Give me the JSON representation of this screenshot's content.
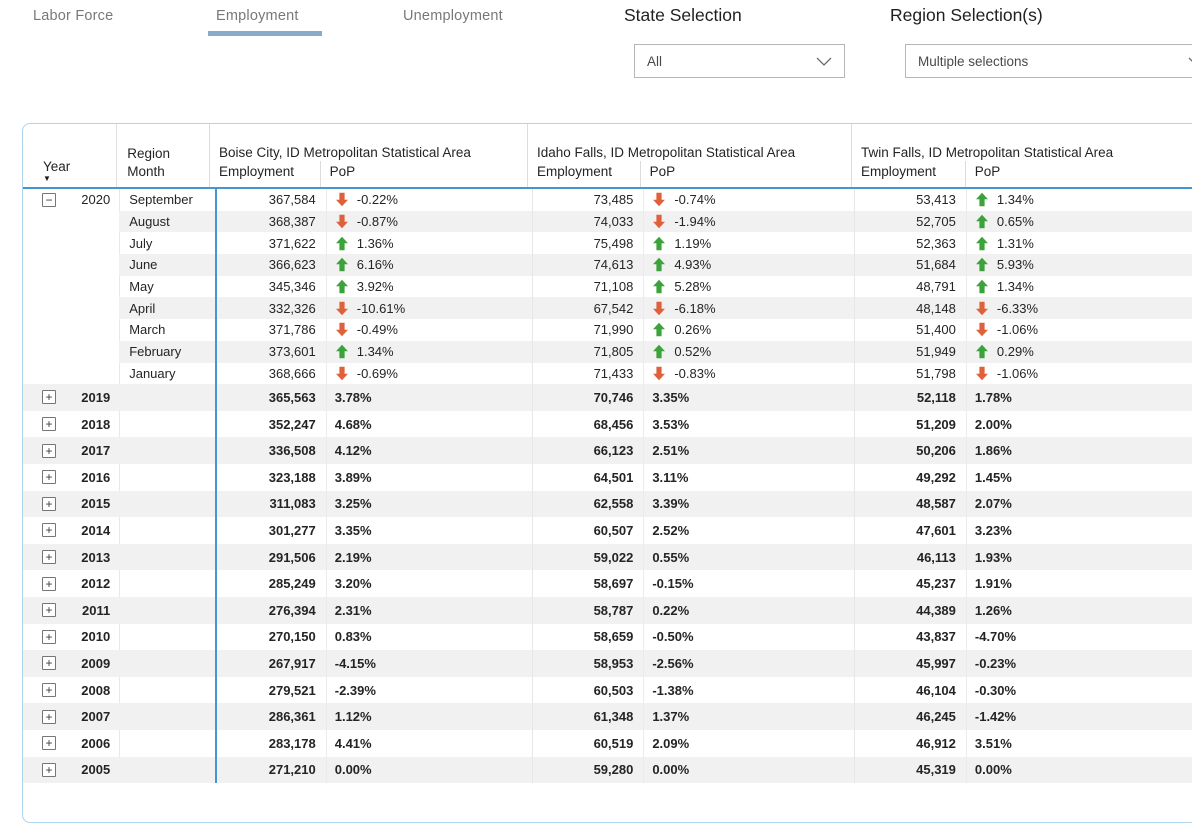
{
  "tabs": {
    "items": [
      {
        "label": "Labor Force",
        "active": false
      },
      {
        "label": "Employment",
        "active": true
      },
      {
        "label": "Unemployment",
        "active": false
      }
    ]
  },
  "filters": {
    "state_label": "State Selection",
    "state_value": "All",
    "region_label": "Region Selection(s)",
    "region_value": "Multiple selections"
  },
  "matrix": {
    "year_header": "Year",
    "region_header": "Region",
    "month_header": "Month",
    "area_groups": [
      {
        "title": "Boise City, ID Metropolitan Statistical Area",
        "sub": [
          "Employment",
          "PoP"
        ]
      },
      {
        "title": "Idaho Falls, ID Metropolitan Statistical Area",
        "sub": [
          "Employment",
          "PoP"
        ]
      },
      {
        "title": "Twin Falls, ID Metropolitan Statistical Area",
        "sub": [
          "Employment",
          "PoP"
        ]
      }
    ],
    "expanded_year": "2020",
    "months": [
      {
        "month": "September",
        "boise": [
          "367,584",
          "down",
          "-0.22%"
        ],
        "idaho": [
          "73,485",
          "down",
          "-0.74%"
        ],
        "twin": [
          "53,413",
          "up",
          "1.34%"
        ]
      },
      {
        "month": "August",
        "boise": [
          "368,387",
          "down",
          "-0.87%"
        ],
        "idaho": [
          "74,033",
          "down",
          "-1.94%"
        ],
        "twin": [
          "52,705",
          "up",
          "0.65%"
        ]
      },
      {
        "month": "July",
        "boise": [
          "371,622",
          "up",
          "1.36%"
        ],
        "idaho": [
          "75,498",
          "up",
          "1.19%"
        ],
        "twin": [
          "52,363",
          "up",
          "1.31%"
        ]
      },
      {
        "month": "June",
        "boise": [
          "366,623",
          "up",
          "6.16%"
        ],
        "idaho": [
          "74,613",
          "up",
          "4.93%"
        ],
        "twin": [
          "51,684",
          "up",
          "5.93%"
        ]
      },
      {
        "month": "May",
        "boise": [
          "345,346",
          "up",
          "3.92%"
        ],
        "idaho": [
          "71,108",
          "up",
          "5.28%"
        ],
        "twin": [
          "48,791",
          "up",
          "1.34%"
        ]
      },
      {
        "month": "April",
        "boise": [
          "332,326",
          "down",
          "-10.61%"
        ],
        "idaho": [
          "67,542",
          "down",
          "-6.18%"
        ],
        "twin": [
          "48,148",
          "down",
          "-6.33%"
        ]
      },
      {
        "month": "March",
        "boise": [
          "371,786",
          "down",
          "-0.49%"
        ],
        "idaho": [
          "71,990",
          "up",
          "0.26%"
        ],
        "twin": [
          "51,400",
          "down",
          "-1.06%"
        ]
      },
      {
        "month": "February",
        "boise": [
          "373,601",
          "up",
          "1.34%"
        ],
        "idaho": [
          "71,805",
          "up",
          "0.52%"
        ],
        "twin": [
          "51,949",
          "up",
          "0.29%"
        ]
      },
      {
        "month": "January",
        "boise": [
          "368,666",
          "down",
          "-0.69%"
        ],
        "idaho": [
          "71,433",
          "down",
          "-0.83%"
        ],
        "twin": [
          "51,798",
          "down",
          "-1.06%"
        ]
      }
    ],
    "years": [
      {
        "year": "2019",
        "boise": [
          "365,563",
          "3.78%"
        ],
        "idaho": [
          "70,746",
          "3.35%"
        ],
        "twin": [
          "52,118",
          "1.78%"
        ]
      },
      {
        "year": "2018",
        "boise": [
          "352,247",
          "4.68%"
        ],
        "idaho": [
          "68,456",
          "3.53%"
        ],
        "twin": [
          "51,209",
          "2.00%"
        ]
      },
      {
        "year": "2017",
        "boise": [
          "336,508",
          "4.12%"
        ],
        "idaho": [
          "66,123",
          "2.51%"
        ],
        "twin": [
          "50,206",
          "1.86%"
        ]
      },
      {
        "year": "2016",
        "boise": [
          "323,188",
          "3.89%"
        ],
        "idaho": [
          "64,501",
          "3.11%"
        ],
        "twin": [
          "49,292",
          "1.45%"
        ]
      },
      {
        "year": "2015",
        "boise": [
          "311,083",
          "3.25%"
        ],
        "idaho": [
          "62,558",
          "3.39%"
        ],
        "twin": [
          "48,587",
          "2.07%"
        ]
      },
      {
        "year": "2014",
        "boise": [
          "301,277",
          "3.35%"
        ],
        "idaho": [
          "60,507",
          "2.52%"
        ],
        "twin": [
          "47,601",
          "3.23%"
        ]
      },
      {
        "year": "2013",
        "boise": [
          "291,506",
          "2.19%"
        ],
        "idaho": [
          "59,022",
          "0.55%"
        ],
        "twin": [
          "46,113",
          "1.93%"
        ]
      },
      {
        "year": "2012",
        "boise": [
          "285,249",
          "3.20%"
        ],
        "idaho": [
          "58,697",
          "-0.15%"
        ],
        "twin": [
          "45,237",
          "1.91%"
        ]
      },
      {
        "year": "2011",
        "boise": [
          "276,394",
          "2.31%"
        ],
        "idaho": [
          "58,787",
          "0.22%"
        ],
        "twin": [
          "44,389",
          "1.26%"
        ]
      },
      {
        "year": "2010",
        "boise": [
          "270,150",
          "0.83%"
        ],
        "idaho": [
          "58,659",
          "-0.50%"
        ],
        "twin": [
          "43,837",
          "-4.70%"
        ]
      },
      {
        "year": "2009",
        "boise": [
          "267,917",
          "-4.15%"
        ],
        "idaho": [
          "58,953",
          "-2.56%"
        ],
        "twin": [
          "45,997",
          "-0.23%"
        ]
      },
      {
        "year": "2008",
        "boise": [
          "279,521",
          "-2.39%"
        ],
        "idaho": [
          "60,503",
          "-1.38%"
        ],
        "twin": [
          "46,104",
          "-0.30%"
        ]
      },
      {
        "year": "2007",
        "boise": [
          "286,361",
          "1.12%"
        ],
        "idaho": [
          "61,348",
          "1.37%"
        ],
        "twin": [
          "46,245",
          "-1.42%"
        ]
      },
      {
        "year": "2006",
        "boise": [
          "283,178",
          "4.41%"
        ],
        "idaho": [
          "60,519",
          "2.09%"
        ],
        "twin": [
          "46,912",
          "3.51%"
        ]
      },
      {
        "year": "2005",
        "boise": [
          "271,210",
          "0.00%"
        ],
        "idaho": [
          "59,280",
          "0.00%"
        ],
        "twin": [
          "45,319",
          "0.00%"
        ]
      }
    ]
  },
  "colors": {
    "positive": "#3ca23b",
    "negative": "#df613b",
    "accent_blue": "#4495d1",
    "tab_underline": "#88abc9",
    "stripe": "#f1f1f1"
  }
}
